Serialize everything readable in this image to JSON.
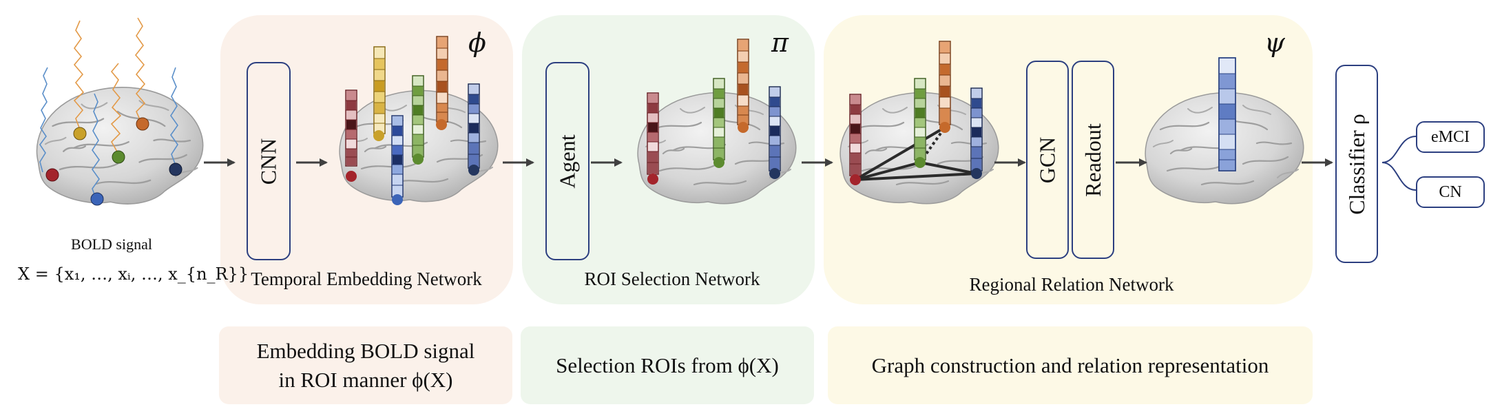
{
  "input": {
    "signal_label": "BOLD signal",
    "formula": "X = {x₁, …, xᵢ, …, x_{n_R}}"
  },
  "stages": {
    "temporal": {
      "box_label": "CNN",
      "symbol": "ϕ",
      "network_label": "Temporal Embedding Network",
      "description_line1": "Embedding BOLD signal",
      "description_line2": "in ROI manner ϕ(X)"
    },
    "roi": {
      "box_label": "Agent",
      "symbol": "π",
      "network_label": "ROI Selection Network",
      "description": "Selection ROIs from ϕ(X)"
    },
    "relation": {
      "box1_label": "GCN",
      "box2_label": "Readout",
      "symbol": "ψ",
      "network_label": "Regional Relation Network",
      "description": "Graph construction and relation representation"
    }
  },
  "classifier": {
    "label": "Classifier ρ",
    "outputs": [
      "eMCI",
      "CN"
    ]
  },
  "colors": {
    "temporal_bg": "#fbf1ea",
    "roi_bg": "#eef6ec",
    "relation_bg": "#fdf9e6",
    "box_border": "#2c3f80",
    "arrow": "#404040",
    "roi_red": "#a3242b",
    "roi_yellow": "#c9a12a",
    "roi_green": "#5c8b2f",
    "roi_orange": "#c5692b",
    "roi_blue": "#2a4383",
    "roi_navy": "#24365f",
    "signal_blue": "#5b8fc9",
    "signal_orange": "#e39a48"
  },
  "icons": [
    "brain-icon",
    "roi-node-icon",
    "embedding-vector-icon",
    "arrow-icon",
    "bold-signal-trace"
  ]
}
